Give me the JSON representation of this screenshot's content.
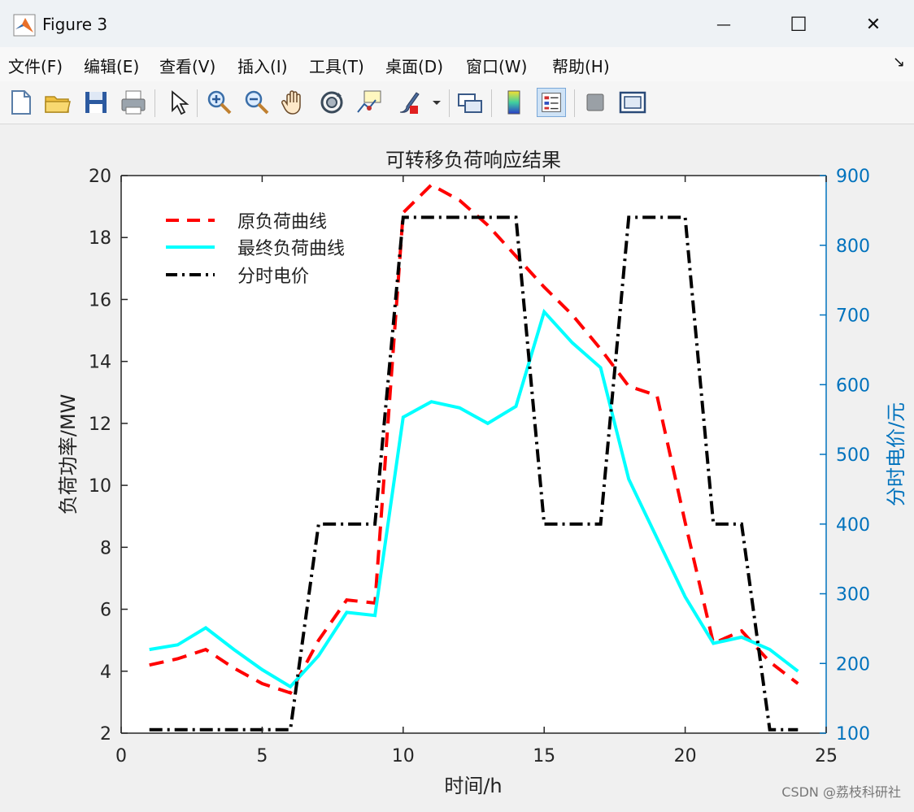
{
  "window": {
    "title": "Figure 3",
    "minimize_symbol": "—",
    "maximize_symbol": "☐",
    "close_symbol": "✕"
  },
  "menu": {
    "items": [
      "文件(F)",
      "编辑(E)",
      "查看(V)",
      "插入(I)",
      "工具(T)",
      "桌面(D)",
      "窗口(W)",
      "帮助(H)"
    ],
    "dock_arrow": "↘"
  },
  "toolbar": {
    "icons": [
      "new-figure-icon",
      "open-file-icon",
      "save-icon",
      "print-icon",
      "select-arrow-icon",
      "zoom-in-icon",
      "zoom-out-icon",
      "pan-hand-icon",
      "rotate-3d-icon",
      "data-cursor-icon",
      "brush-icon",
      "link-plot-icon",
      "colorbar-icon",
      "legend-icon",
      "hide-plot-tools-icon",
      "show-plot-tools-icon"
    ]
  },
  "colors": {
    "original_load": "#ff0000",
    "final_load": "#00ffff",
    "tou_price": "#000000",
    "right_axis": "#0072bd"
  },
  "watermark": "CSDN @荔枝科研社",
  "chart_data": {
    "type": "line",
    "title": "可转移负荷响应结果",
    "xlabel": "时间/h",
    "ylabel_left": "负荷功率/MW",
    "ylabel_right": "分时电价/元",
    "xlim": [
      0,
      25
    ],
    "ylim_left": [
      2,
      20
    ],
    "ylim_right": [
      100,
      900
    ],
    "xticks": [
      0,
      5,
      10,
      15,
      20,
      25
    ],
    "yticks_left": [
      2,
      4,
      6,
      8,
      10,
      12,
      14,
      16,
      18,
      20
    ],
    "yticks_right": [
      100,
      200,
      300,
      400,
      500,
      600,
      700,
      800,
      900
    ],
    "grid": false,
    "legend_position": "top-left",
    "x": [
      1,
      2,
      3,
      4,
      5,
      6,
      7,
      8,
      9,
      10,
      11,
      12,
      13,
      14,
      15,
      16,
      17,
      18,
      19,
      20,
      21,
      22,
      23,
      24
    ],
    "series": [
      {
        "name": "原负荷曲线",
        "axis": "left",
        "style": "dashed",
        "color": "#ff0000",
        "values": [
          4.2,
          4.4,
          4.7,
          4.1,
          3.6,
          3.3,
          5.0,
          6.3,
          6.2,
          18.8,
          19.7,
          19.2,
          18.4,
          17.4,
          16.4,
          15.5,
          14.4,
          13.2,
          12.9,
          8.8,
          4.9,
          5.3,
          4.3,
          3.6
        ]
      },
      {
        "name": "最终负荷曲线",
        "axis": "left",
        "style": "solid",
        "color": "#00ffff",
        "values": [
          4.7,
          4.85,
          5.4,
          4.7,
          4.05,
          3.5,
          4.5,
          5.9,
          5.8,
          12.2,
          12.7,
          12.5,
          12.0,
          12.55,
          15.6,
          14.6,
          13.8,
          10.2,
          8.3,
          6.4,
          4.9,
          5.1,
          4.7,
          4.0
        ]
      },
      {
        "name": "分时电价",
        "axis": "right",
        "style": "dashdot",
        "color": "#000000",
        "values": [
          105,
          105,
          105,
          105,
          105,
          105,
          400,
          400,
          400,
          840,
          840,
          840,
          840,
          840,
          400,
          400,
          400,
          840,
          840,
          840,
          400,
          400,
          105,
          105
        ]
      }
    ]
  }
}
